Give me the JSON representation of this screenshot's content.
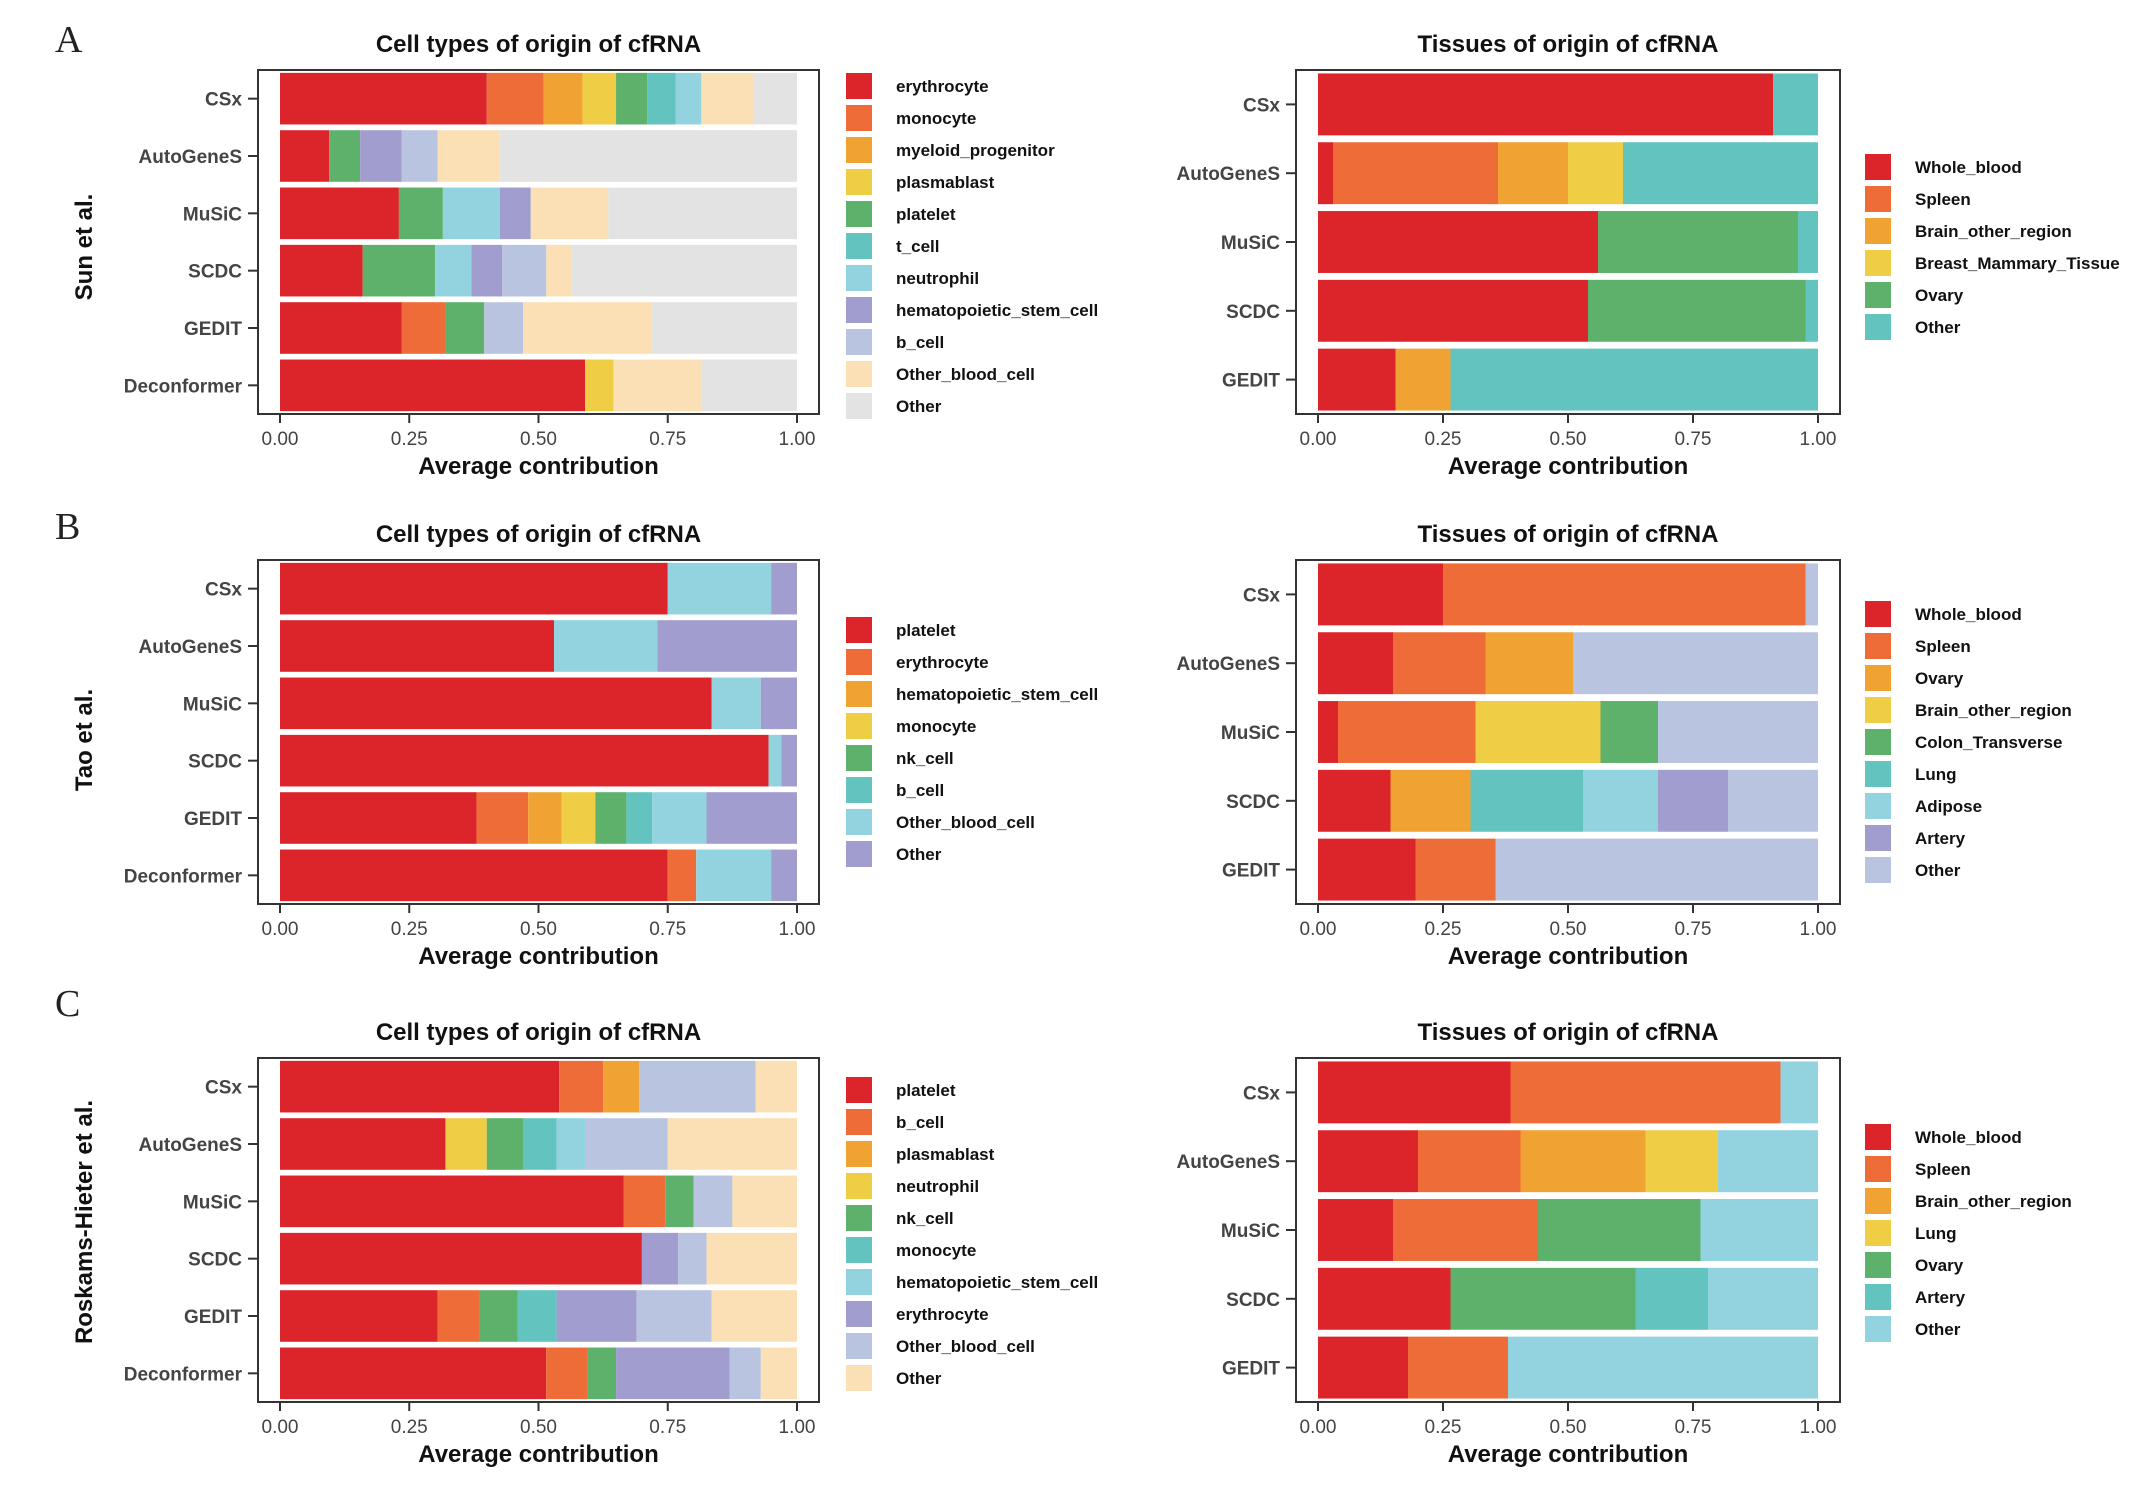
{
  "panels": [
    {
      "letter": "A",
      "row_label": "Sun et al."
    },
    {
      "letter": "B",
      "row_label": "Tao et al."
    },
    {
      "letter": "C",
      "row_label": "Roskams-Hieter et al."
    }
  ],
  "colors": {
    "red": "#dc252b",
    "orange": "#ee6c37",
    "amber": "#f0a232",
    "yellow": "#efcd45",
    "green": "#5db16a",
    "teal": "#63c4bf",
    "lightblue": "#93d3e0",
    "purple": "#a19ecf",
    "lavender": "#b9c4e0",
    "peach": "#fbe0b6",
    "grey": "#e3e3e3"
  },
  "chart_data": [
    {
      "type": "bar",
      "orientation": "horizontal",
      "stacked": true,
      "title": "Cell types of origin of cfRNA",
      "xlabel": "Average contribution",
      "ylabel": "Sun et al.",
      "xlim": [
        0,
        1
      ],
      "xticks": [
        "0.00",
        "0.25",
        "0.50",
        "0.75",
        "1.00"
      ],
      "legend_position": "right",
      "categories": [
        "CSx",
        "AutoGeneS",
        "MuSiC",
        "SCDC",
        "GEDIT",
        "Deconformer"
      ],
      "series": [
        {
          "name": "erythrocyte",
          "color": "#dc252b",
          "values": [
            0.4,
            0.095,
            0.23,
            0.16,
            0.235,
            0.59
          ]
        },
        {
          "name": "monocyte",
          "color": "#ee6c37",
          "values": [
            0.11,
            0,
            0,
            0,
            0.085,
            0
          ]
        },
        {
          "name": "myeloid_progenitor",
          "color": "#f0a232",
          "values": [
            0.075,
            0,
            0,
            0,
            0,
            0
          ]
        },
        {
          "name": "plasmablast",
          "color": "#efcd45",
          "values": [
            0.065,
            0,
            0,
            0,
            0,
            0.055
          ]
        },
        {
          "name": "platelet",
          "color": "#5db16a",
          "values": [
            0.06,
            0.06,
            0.085,
            0.14,
            0.075,
            0
          ]
        },
        {
          "name": "t_cell",
          "color": "#63c4bf",
          "values": [
            0.055,
            0,
            0,
            0,
            0,
            0
          ]
        },
        {
          "name": "neutrophil",
          "color": "#93d3e0",
          "values": [
            0.05,
            0,
            0.11,
            0.07,
            0,
            0
          ]
        },
        {
          "name": "hematopoietic_stem_cell",
          "color": "#a19ecf",
          "values": [
            0,
            0.08,
            0.06,
            0.06,
            0,
            0
          ]
        },
        {
          "name": "b_cell",
          "color": "#b9c4e0",
          "values": [
            0,
            0.07,
            0,
            0.085,
            0.075,
            0
          ]
        },
        {
          "name": "Other_blood_cell",
          "color": "#fbe0b6",
          "values": [
            0.1,
            0.12,
            0.15,
            0.05,
            0.25,
            0.17
          ]
        },
        {
          "name": "Other",
          "color": "#e3e3e3",
          "values": [
            0.085,
            0.575,
            0.365,
            0.435,
            0.28,
            0.185
          ]
        }
      ]
    },
    {
      "type": "bar",
      "orientation": "horizontal",
      "stacked": true,
      "title": "Tissues of origin of cfRNA",
      "xlabel": "Average contribution",
      "xlim": [
        0,
        1
      ],
      "xticks": [
        "0.00",
        "0.25",
        "0.50",
        "0.75",
        "1.00"
      ],
      "legend_position": "right",
      "categories": [
        "CSx",
        "AutoGeneS",
        "MuSiC",
        "SCDC",
        "GEDIT"
      ],
      "series": [
        {
          "name": "Whole_blood",
          "color": "#dc252b",
          "values": [
            0.91,
            0.03,
            0.56,
            0.54,
            0.155
          ]
        },
        {
          "name": "Spleen",
          "color": "#ee6c37",
          "values": [
            0,
            0.33,
            0,
            0,
            0
          ]
        },
        {
          "name": "Brain_other_region",
          "color": "#f0a232",
          "values": [
            0,
            0.14,
            0,
            0,
            0.11
          ]
        },
        {
          "name": "Breast_Mammary_Tissue",
          "color": "#efcd45",
          "values": [
            0,
            0.11,
            0,
            0,
            0
          ]
        },
        {
          "name": "Ovary",
          "color": "#5db16a",
          "values": [
            0,
            0,
            0.4,
            0.435,
            0
          ]
        },
        {
          "name": "Other",
          "color": "#63c4bf",
          "values": [
            0.09,
            0.39,
            0.04,
            0.025,
            0.735
          ]
        }
      ]
    },
    {
      "type": "bar",
      "orientation": "horizontal",
      "stacked": true,
      "title": "Cell types of origin of cfRNA",
      "xlabel": "Average contribution",
      "ylabel": "Tao et al.",
      "xlim": [
        0,
        1
      ],
      "xticks": [
        "0.00",
        "0.25",
        "0.50",
        "0.75",
        "1.00"
      ],
      "legend_position": "right",
      "categories": [
        "CSx",
        "AutoGeneS",
        "MuSiC",
        "SCDC",
        "GEDIT",
        "Deconformer"
      ],
      "series": [
        {
          "name": "platelet",
          "color": "#dc252b",
          "values": [
            0.75,
            0.53,
            0.835,
            0.945,
            0.38,
            0.75
          ]
        },
        {
          "name": "erythrocyte",
          "color": "#ee6c37",
          "values": [
            0,
            0,
            0,
            0,
            0.1,
            0.055
          ]
        },
        {
          "name": "hematopoietic_stem_cell",
          "color": "#f0a232",
          "values": [
            0,
            0,
            0,
            0,
            0.065,
            0
          ]
        },
        {
          "name": "monocyte",
          "color": "#efcd45",
          "values": [
            0,
            0,
            0,
            0,
            0.065,
            0
          ]
        },
        {
          "name": "nk_cell",
          "color": "#5db16a",
          "values": [
            0,
            0,
            0,
            0,
            0.06,
            0
          ]
        },
        {
          "name": "b_cell",
          "color": "#63c4bf",
          "values": [
            0,
            0,
            0,
            0,
            0.05,
            0
          ]
        },
        {
          "name": "Other_blood_cell",
          "color": "#93d3e0",
          "values": [
            0.2,
            0.2,
            0.095,
            0.025,
            0.105,
            0.145
          ]
        },
        {
          "name": "Other",
          "color": "#a19ecf",
          "values": [
            0.05,
            0.27,
            0.07,
            0.03,
            0.175,
            0.05
          ]
        }
      ]
    },
    {
      "type": "bar",
      "orientation": "horizontal",
      "stacked": true,
      "title": "Tissues of origin of cfRNA",
      "xlabel": "Average contribution",
      "xlim": [
        0,
        1
      ],
      "xticks": [
        "0.00",
        "0.25",
        "0.50",
        "0.75",
        "1.00"
      ],
      "legend_position": "right",
      "categories": [
        "CSx",
        "AutoGeneS",
        "MuSiC",
        "SCDC",
        "GEDIT"
      ],
      "series": [
        {
          "name": "Whole_blood",
          "color": "#dc252b",
          "values": [
            0.25,
            0.15,
            0.04,
            0.145,
            0.195
          ]
        },
        {
          "name": "Spleen",
          "color": "#ee6c37",
          "values": [
            0.725,
            0.185,
            0.275,
            0,
            0.16
          ]
        },
        {
          "name": "Ovary",
          "color": "#f0a232",
          "values": [
            0,
            0.175,
            0,
            0.16,
            0
          ]
        },
        {
          "name": "Brain_other_region",
          "color": "#efcd45",
          "values": [
            0,
            0,
            0.25,
            0,
            0
          ]
        },
        {
          "name": "Colon_Transverse",
          "color": "#5db16a",
          "values": [
            0,
            0,
            0.115,
            0,
            0
          ]
        },
        {
          "name": "Lung",
          "color": "#63c4bf",
          "values": [
            0,
            0,
            0,
            0.225,
            0
          ]
        },
        {
          "name": "Adipose",
          "color": "#93d3e0",
          "values": [
            0,
            0,
            0,
            0.15,
            0
          ]
        },
        {
          "name": "Artery",
          "color": "#a19ecf",
          "values": [
            0,
            0,
            0,
            0.14,
            0
          ]
        },
        {
          "name": "Other",
          "color": "#b9c4e0",
          "values": [
            0.025,
            0.49,
            0.32,
            0.18,
            0.645
          ]
        }
      ]
    },
    {
      "type": "bar",
      "orientation": "horizontal",
      "stacked": true,
      "title": "Cell types of origin of cfRNA",
      "xlabel": "Average contribution",
      "ylabel": "Roskams-Hieter et al.",
      "xlim": [
        0,
        1
      ],
      "xticks": [
        "0.00",
        "0.25",
        "0.50",
        "0.75",
        "1.00"
      ],
      "legend_position": "right",
      "categories": [
        "CSx",
        "AutoGeneS",
        "MuSiC",
        "SCDC",
        "GEDIT",
        "Deconformer"
      ],
      "series": [
        {
          "name": "platelet",
          "color": "#dc252b",
          "values": [
            0.54,
            0.32,
            0.665,
            0.7,
            0.305,
            0.515
          ]
        },
        {
          "name": "b_cell",
          "color": "#ee6c37",
          "values": [
            0.085,
            0,
            0.08,
            0,
            0.08,
            0.08
          ]
        },
        {
          "name": "plasmablast",
          "color": "#f0a232",
          "values": [
            0.07,
            0,
            0,
            0,
            0,
            0
          ]
        },
        {
          "name": "neutrophil",
          "color": "#efcd45",
          "values": [
            0,
            0.08,
            0,
            0,
            0,
            0
          ]
        },
        {
          "name": "nk_cell",
          "color": "#5db16a",
          "values": [
            0,
            0.07,
            0.055,
            0,
            0.075,
            0.055
          ]
        },
        {
          "name": "monocyte",
          "color": "#63c4bf",
          "values": [
            0,
            0.065,
            0,
            0,
            0.075,
            0
          ]
        },
        {
          "name": "hematopoietic_stem_cell",
          "color": "#93d3e0",
          "values": [
            0,
            0.055,
            0,
            0,
            0,
            0
          ]
        },
        {
          "name": "erythrocyte",
          "color": "#a19ecf",
          "values": [
            0,
            0,
            0,
            0.07,
            0.155,
            0.22
          ]
        },
        {
          "name": "Other_blood_cell",
          "color": "#b9c4e0",
          "values": [
            0.225,
            0.16,
            0.075,
            0.055,
            0.145,
            0.06
          ]
        },
        {
          "name": "Other",
          "color": "#fbe0b6",
          "values": [
            0.08,
            0.25,
            0.125,
            0.175,
            0.165,
            0.07
          ]
        }
      ]
    },
    {
      "type": "bar",
      "orientation": "horizontal",
      "stacked": true,
      "title": "Tissues of origin of cfRNA",
      "xlabel": "Average contribution",
      "xlim": [
        0,
        1
      ],
      "xticks": [
        "0.00",
        "0.25",
        "0.50",
        "0.75",
        "1.00"
      ],
      "legend_position": "right",
      "categories": [
        "CSx",
        "AutoGeneS",
        "MuSiC",
        "SCDC",
        "GEDIT"
      ],
      "series": [
        {
          "name": "Whole_blood",
          "color": "#dc252b",
          "values": [
            0.385,
            0.2,
            0.15,
            0.265,
            0.18
          ]
        },
        {
          "name": "Spleen",
          "color": "#ee6c37",
          "values": [
            0.54,
            0.205,
            0.29,
            0,
            0.2
          ]
        },
        {
          "name": "Brain_other_region",
          "color": "#f0a232",
          "values": [
            0,
            0.25,
            0,
            0,
            0
          ]
        },
        {
          "name": "Lung",
          "color": "#efcd45",
          "values": [
            0,
            0.145,
            0,
            0,
            0
          ]
        },
        {
          "name": "Ovary",
          "color": "#5db16a",
          "values": [
            0,
            0,
            0.325,
            0.37,
            0
          ]
        },
        {
          "name": "Artery",
          "color": "#63c4bf",
          "values": [
            0,
            0,
            0,
            0.145,
            0
          ]
        },
        {
          "name": "Other",
          "color": "#93d3e0",
          "values": [
            0.075,
            0.2,
            0.235,
            0.22,
            0.62
          ]
        }
      ]
    }
  ]
}
